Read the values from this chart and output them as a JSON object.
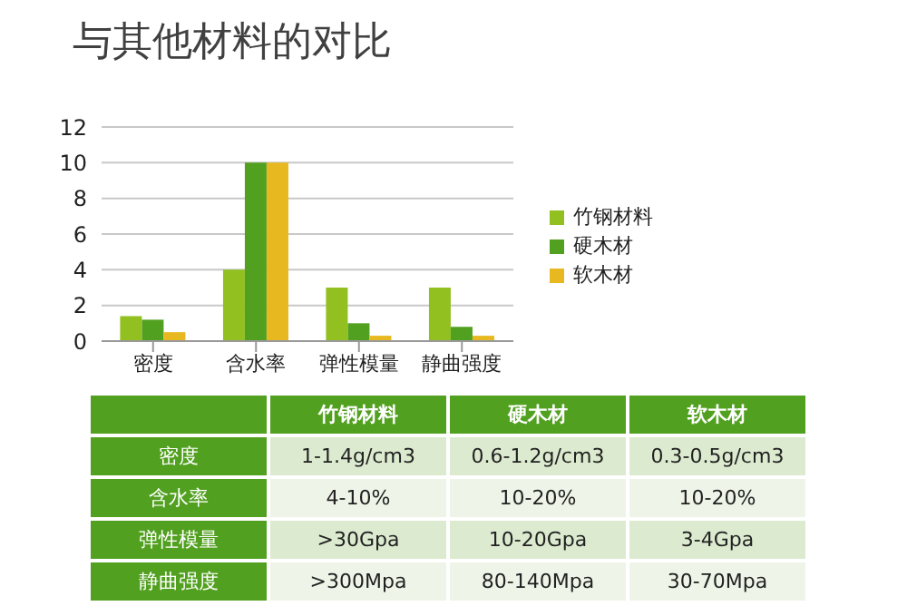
{
  "chart_data": [
    {
      "type": "bar",
      "title": "与其他材料的对比",
      "categories": [
        "密度",
        "含水率",
        "弹性模量",
        "静曲强度"
      ],
      "series": [
        {
          "name": "竹钢材料",
          "color": "#92c020",
          "values": [
            1.4,
            4,
            3,
            3
          ]
        },
        {
          "name": "硬木材",
          "color": "#52a020",
          "values": [
            1.2,
            10,
            1,
            0.8
          ]
        },
        {
          "name": "软木材",
          "color": "#e8b820",
          "values": [
            0.5,
            10,
            0.3,
            0.3
          ]
        }
      ],
      "ylim": [
        0,
        12
      ],
      "yticks": [
        0,
        2,
        4,
        6,
        8,
        10,
        12
      ],
      "grid": "y",
      "legend": "right"
    },
    {
      "type": "other",
      "categories": [
        null,
        "竹钢材料",
        "硬木材",
        "软木材"
      ],
      "y_categories": [
        "密度",
        "含水率",
        "弹性模量",
        "静曲强度"
      ],
      "cell_labels": [
        [
          "1-1.4g/cm3",
          "0.6-1.2g/cm3",
          "0.3-0.5g/cm3"
        ],
        [
          "4-10%",
          "10-20%",
          "10-20%"
        ],
        [
          ">30Gpa",
          "10-20Gpa",
          "3-4Gpa"
        ],
        [
          ">300Mpa",
          "80-140Mpa",
          "30-70Mpa"
        ]
      ]
    }
  ]
}
